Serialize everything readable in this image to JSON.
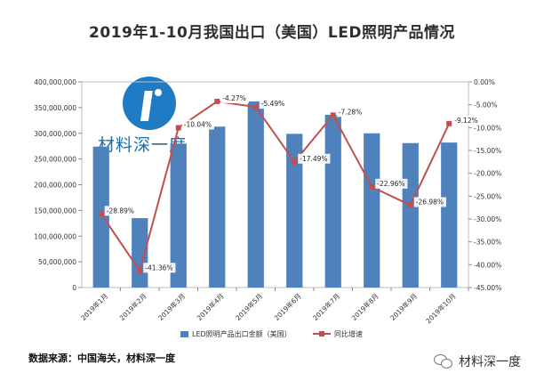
{
  "title": "2019年1-10月我国出口（美国）LED照明产品情况",
  "source": "数据来源：中国海关，材料深一度",
  "brand": "材料深一度",
  "watermark_text": "材料深一度",
  "chart_data": {
    "type": "bar",
    "categories": [
      "2019年1月",
      "2019年2月",
      "2019年3月",
      "2019年4月",
      "2019年5月",
      "2019年6月",
      "2019年7月",
      "2019年8月",
      "2019年9月",
      "2019年10月"
    ],
    "series": [
      {
        "name": "LED照明产品出口金额（美国）",
        "type": "bar",
        "axis": "left",
        "color": "#4f81bd",
        "values": [
          274000000,
          135000000,
          280000000,
          313000000,
          362000000,
          299000000,
          336000000,
          300000000,
          281000000,
          282000000
        ]
      },
      {
        "name": "同比增速",
        "type": "line",
        "axis": "right",
        "color": "#c0504d",
        "values": [
          -28.89,
          -41.36,
          -10.04,
          -4.27,
          -5.49,
          -17.49,
          -7.28,
          -22.96,
          -26.98,
          -9.12
        ],
        "labels": [
          "-28.89%",
          "-41.36%",
          "-10.04%",
          "-4.27%",
          "-5.49%",
          "-17.49%",
          "-7.28%",
          "-22.96%",
          "-26.98%",
          "-9.12%"
        ]
      }
    ],
    "y_left": {
      "min": 0,
      "max": 400000000,
      "ticks": [
        "0",
        "50,000,000",
        "100,000,000",
        "150,000,000",
        "200,000,000",
        "250,000,000",
        "300,000,000",
        "350,000,000",
        "400,000,000"
      ]
    },
    "y_right": {
      "min": -45,
      "max": 0,
      "ticks": [
        "0.00%",
        "-5.00%",
        "-10.00%",
        "-15.00%",
        "-20.00%",
        "-25.00%",
        "-30.00%",
        "-35.00%",
        "-40.00%",
        "-45.00%"
      ]
    },
    "legend_position": "bottom",
    "grid": false
  }
}
